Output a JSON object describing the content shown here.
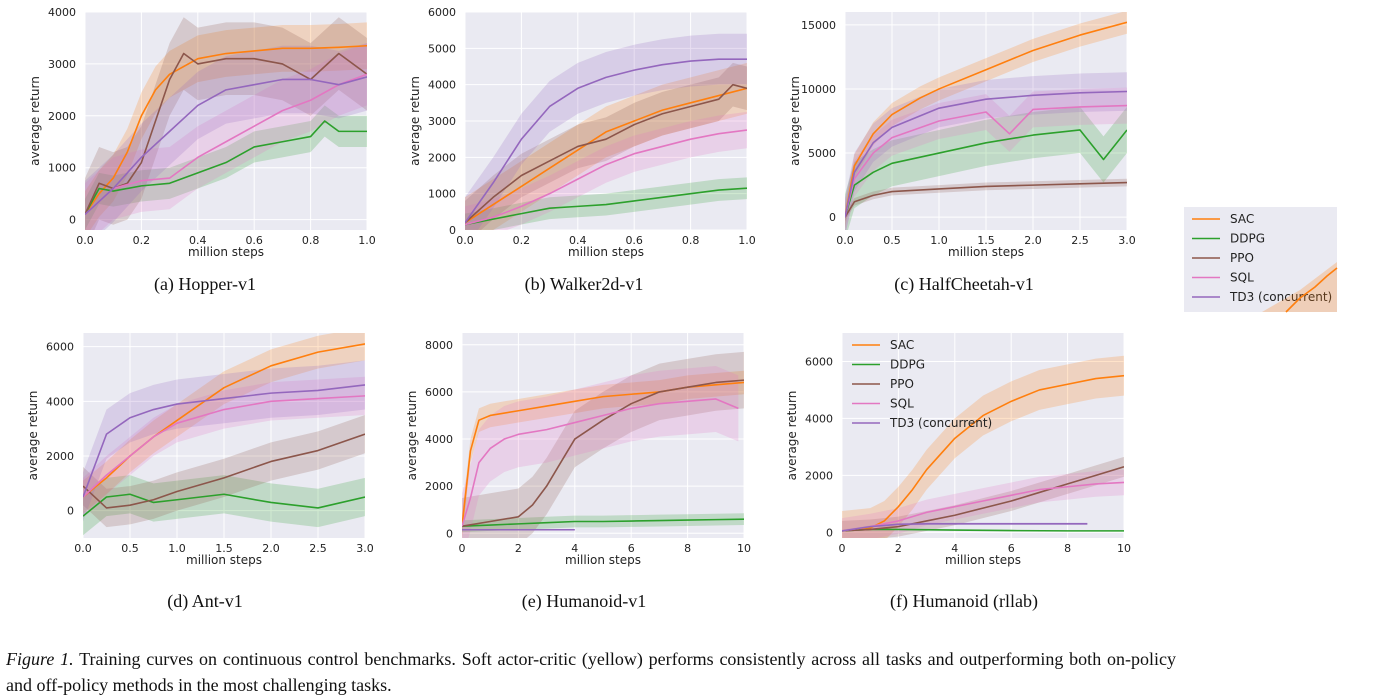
{
  "figure": {
    "caption_lead": "Figure 1.",
    "caption_text": "Training curves on continuous control benchmarks.  Soft actor-critic (yellow) performs consistently across all tasks and outperforming both on-policy and off-policy methods in the most challenging tasks."
  },
  "colors": {
    "SAC": "#ff7f0e",
    "DDPG": "#2ca02c",
    "PPO": "#8c564b",
    "SQL": "#e377c2",
    "TD3 (concurrent)": "#9467bd",
    "panel_bg": "#eaeaf2",
    "grid": "#ffffff"
  },
  "legend": {
    "entries": [
      "SAC",
      "DDPG",
      "PPO",
      "SQL",
      "TD3 (concurrent)"
    ]
  },
  "chart_data": [
    {
      "type": "line",
      "caption": "(a) Hopper-v1",
      "xlabel": "million steps",
      "ylabel": "average return",
      "xlim": [
        0,
        1.0
      ],
      "ylim": [
        -200,
        4000
      ],
      "xticks": [
        0.0,
        0.2,
        0.4,
        0.6,
        0.8,
        1.0
      ],
      "xtick_labels": [
        "0.0",
        "0.2",
        "0.4",
        "0.6",
        "0.8",
        "1.0"
      ],
      "yticks": [
        0,
        1000,
        2000,
        3000,
        4000
      ],
      "ytick_labels": [
        "0",
        "1000",
        "2000",
        "3000",
        "4000"
      ],
      "grid": true,
      "series": [
        {
          "name": "SAC",
          "x": [
            0,
            0.05,
            0.1,
            0.15,
            0.2,
            0.25,
            0.3,
            0.4,
            0.5,
            0.6,
            0.7,
            0.8,
            0.9,
            1.0
          ],
          "y": [
            100,
            500,
            800,
            1300,
            2000,
            2500,
            2800,
            3100,
            3200,
            3250,
            3300,
            3300,
            3320,
            3350
          ],
          "band": 450
        },
        {
          "name": "DDPG",
          "x": [
            0,
            0.05,
            0.1,
            0.2,
            0.3,
            0.4,
            0.5,
            0.6,
            0.7,
            0.8,
            0.85,
            0.9,
            1.0
          ],
          "y": [
            100,
            600,
            550,
            650,
            700,
            900,
            1100,
            1400,
            1500,
            1600,
            1900,
            1700,
            1700
          ],
          "band": 300
        },
        {
          "name": "PPO",
          "x": [
            0,
            0.05,
            0.1,
            0.15,
            0.2,
            0.25,
            0.3,
            0.35,
            0.4,
            0.5,
            0.6,
            0.7,
            0.8,
            0.9,
            1.0
          ],
          "y": [
            100,
            700,
            600,
            700,
            1100,
            1900,
            2700,
            3200,
            3000,
            3100,
            3100,
            3000,
            2700,
            3200,
            2800
          ],
          "band": 700
        },
        {
          "name": "SQL",
          "x": [
            0,
            0.1,
            0.2,
            0.3,
            0.4,
            0.5,
            0.6,
            0.7,
            0.8,
            0.9,
            1.0
          ],
          "y": [
            100,
            600,
            750,
            800,
            1200,
            1500,
            1800,
            2100,
            2300,
            2600,
            2800
          ],
          "band": 600
        },
        {
          "name": "TD3 (concurrent)",
          "x": [
            0,
            0.1,
            0.2,
            0.3,
            0.4,
            0.5,
            0.6,
            0.7,
            0.8,
            0.9,
            1.0
          ],
          "y": [
            100,
            600,
            1200,
            1700,
            2200,
            2500,
            2600,
            2700,
            2700,
            2600,
            2750
          ],
          "band": 650
        }
      ]
    },
    {
      "type": "line",
      "caption": "(b) Walker2d-v1",
      "xlabel": "million steps",
      "ylabel": "average return",
      "xlim": [
        0,
        1.0
      ],
      "ylim": [
        0,
        6000
      ],
      "xticks": [
        0.0,
        0.2,
        0.4,
        0.6,
        0.8,
        1.0
      ],
      "xtick_labels": [
        "0.0",
        "0.2",
        "0.4",
        "0.6",
        "0.8",
        "1.0"
      ],
      "yticks": [
        0,
        1000,
        2000,
        3000,
        4000,
        5000,
        6000
      ],
      "ytick_labels": [
        "0",
        "1000",
        "2000",
        "3000",
        "4000",
        "5000",
        "6000"
      ],
      "grid": true,
      "series": [
        {
          "name": "SAC",
          "x": [
            0,
            0.1,
            0.2,
            0.3,
            0.4,
            0.5,
            0.6,
            0.7,
            0.8,
            0.9,
            1.0
          ],
          "y": [
            200,
            700,
            1200,
            1700,
            2200,
            2700,
            3000,
            3300,
            3500,
            3700,
            3900
          ],
          "band": 700
        },
        {
          "name": "DDPG",
          "x": [
            0,
            0.1,
            0.2,
            0.3,
            0.4,
            0.5,
            0.6,
            0.7,
            0.8,
            0.9,
            1.0
          ],
          "y": [
            150,
            300,
            450,
            600,
            650,
            700,
            800,
            900,
            1000,
            1100,
            1150
          ],
          "band": 300
        },
        {
          "name": "PPO",
          "x": [
            0,
            0.1,
            0.2,
            0.3,
            0.4,
            0.5,
            0.6,
            0.7,
            0.8,
            0.9,
            0.95,
            1.0
          ],
          "y": [
            200,
            900,
            1500,
            1900,
            2300,
            2500,
            2900,
            3200,
            3400,
            3600,
            4000,
            3900
          ],
          "band": 600
        },
        {
          "name": "SQL",
          "x": [
            0,
            0.1,
            0.2,
            0.3,
            0.4,
            0.5,
            0.6,
            0.7,
            0.8,
            0.9,
            1.0
          ],
          "y": [
            150,
            350,
            650,
            1000,
            1400,
            1800,
            2100,
            2300,
            2500,
            2650,
            2750
          ],
          "band": 500
        },
        {
          "name": "TD3 (concurrent)",
          "x": [
            0,
            0.1,
            0.2,
            0.3,
            0.4,
            0.5,
            0.6,
            0.7,
            0.8,
            0.9,
            1.0
          ],
          "y": [
            200,
            1300,
            2500,
            3400,
            3900,
            4200,
            4400,
            4550,
            4650,
            4700,
            4700
          ],
          "band": 700
        }
      ]
    },
    {
      "type": "line",
      "caption": "(c) HalfCheetah-v1",
      "xlabel": "million steps",
      "ylabel": "average return",
      "xlim": [
        0,
        3.0
      ],
      "ylim": [
        -1000,
        16000
      ],
      "xticks": [
        0.0,
        0.5,
        1.0,
        1.5,
        2.0,
        2.5,
        3.0
      ],
      "xtick_labels": [
        "0.0",
        "0.5",
        "1.0",
        "1.5",
        "2.0",
        "2.5",
        "3.0"
      ],
      "yticks": [
        0,
        5000,
        10000,
        15000
      ],
      "ytick_labels": [
        "0",
        "5000",
        "10000",
        "15000"
      ],
      "grid": true,
      "series": [
        {
          "name": "SAC",
          "x": [
            0,
            0.1,
            0.3,
            0.5,
            0.8,
            1.0,
            1.5,
            2.0,
            2.5,
            3.0
          ],
          "y": [
            0,
            4000,
            6500,
            8000,
            9300,
            10000,
            11500,
            13000,
            14200,
            15200
          ],
          "band": 900
        },
        {
          "name": "DDPG",
          "x": [
            0,
            0.1,
            0.3,
            0.5,
            1.0,
            1.5,
            2.0,
            2.5,
            2.75,
            3.0
          ],
          "y": [
            0,
            2500,
            3500,
            4200,
            5000,
            5800,
            6400,
            6800,
            4500,
            6800
          ],
          "band": 1800
        },
        {
          "name": "PPO",
          "x": [
            0,
            0.1,
            0.3,
            0.5,
            1.0,
            1.5,
            2.0,
            2.5,
            3.0
          ],
          "y": [
            0,
            1200,
            1700,
            2000,
            2200,
            2400,
            2500,
            2600,
            2700
          ],
          "band": 300
        },
        {
          "name": "SQL",
          "x": [
            0,
            0.1,
            0.3,
            0.5,
            1.0,
            1.5,
            1.75,
            2.0,
            2.5,
            3.0
          ],
          "y": [
            0,
            3000,
            5000,
            6200,
            7500,
            8200,
            6500,
            8400,
            8600,
            8700
          ],
          "band": 1400
        },
        {
          "name": "TD3 (concurrent)",
          "x": [
            0,
            0.1,
            0.3,
            0.5,
            1.0,
            1.5,
            2.0,
            2.5,
            3.0
          ],
          "y": [
            0,
            3500,
            5800,
            7000,
            8500,
            9200,
            9500,
            9700,
            9800
          ],
          "band": 1500
        }
      ]
    },
    {
      "type": "line",
      "caption": "(d) Ant-v1",
      "xlabel": "million steps",
      "ylabel": "average return",
      "xlim": [
        0,
        3.0
      ],
      "ylim": [
        -1000,
        6500
      ],
      "xticks": [
        0.0,
        0.5,
        1.0,
        1.5,
        2.0,
        2.5,
        3.0
      ],
      "xtick_labels": [
        "0.0",
        "0.5",
        "1.0",
        "1.5",
        "2.0",
        "2.5",
        "3.0"
      ],
      "yticks": [
        0,
        2000,
        4000,
        6000
      ],
      "ytick_labels": [
        "0",
        "2000",
        "4000",
        "6000"
      ],
      "grid": true,
      "series": [
        {
          "name": "SAC",
          "x": [
            0,
            0.25,
            0.5,
            0.75,
            1.0,
            1.5,
            2.0,
            2.5,
            3.0
          ],
          "y": [
            500,
            1200,
            2000,
            2700,
            3300,
            4500,
            5300,
            5800,
            6100
          ],
          "band": 600
        },
        {
          "name": "DDPG",
          "x": [
            0,
            0.25,
            0.5,
            0.75,
            1.0,
            1.5,
            2.0,
            2.5,
            3.0
          ],
          "y": [
            -200,
            500,
            600,
            300,
            400,
            600,
            300,
            100,
            500
          ],
          "band": 700
        },
        {
          "name": "PPO",
          "x": [
            0,
            0.25,
            0.5,
            0.75,
            1.0,
            1.5,
            2.0,
            2.5,
            3.0
          ],
          "y": [
            900,
            100,
            200,
            400,
            700,
            1200,
            1800,
            2200,
            2800
          ],
          "band": 700
        },
        {
          "name": "SQL",
          "x": [
            0,
            0.25,
            0.5,
            0.75,
            1.0,
            1.5,
            2.0,
            2.5,
            3.0
          ],
          "y": [
            500,
            1300,
            2000,
            2700,
            3200,
            3700,
            4000,
            4100,
            4200
          ],
          "band": 700
        },
        {
          "name": "TD3 (concurrent)",
          "x": [
            0,
            0.25,
            0.5,
            0.75,
            1.0,
            1.5,
            2.0,
            2.5,
            3.0
          ],
          "y": [
            500,
            2800,
            3400,
            3700,
            3900,
            4100,
            4300,
            4400,
            4600
          ],
          "band": 900
        }
      ]
    },
    {
      "type": "line",
      "caption": "(e) Humanoid-v1",
      "xlabel": "million steps",
      "ylabel": "average return",
      "xlim": [
        0,
        10
      ],
      "ylim": [
        -200,
        8500
      ],
      "xticks": [
        0,
        2,
        4,
        6,
        8,
        10
      ],
      "xtick_labels": [
        "0",
        "2",
        "4",
        "6",
        "8",
        "10"
      ],
      "yticks": [
        0,
        2000,
        4000,
        6000,
        8000
      ],
      "ytick_labels": [
        "0",
        "2000",
        "4000",
        "6000",
        "8000"
      ],
      "grid": true,
      "series": [
        {
          "name": "SAC",
          "x": [
            0,
            0.3,
            0.6,
            1,
            2,
            3,
            4,
            5,
            6,
            7,
            8,
            9,
            10
          ],
          "y": [
            300,
            3500,
            4800,
            5000,
            5200,
            5400,
            5600,
            5800,
            5900,
            6000,
            6200,
            6300,
            6400
          ],
          "band": 500
        },
        {
          "name": "DDPG",
          "x": [
            0,
            1,
            2,
            3,
            4,
            5,
            6,
            7,
            8,
            9,
            10
          ],
          "y": [
            300,
            350,
            400,
            450,
            500,
            500,
            520,
            540,
            560,
            580,
            600
          ],
          "band": 250
        },
        {
          "name": "PPO",
          "x": [
            0,
            1,
            2,
            2.5,
            3,
            3.5,
            4,
            5,
            6,
            7,
            8,
            9,
            10
          ],
          "y": [
            300,
            500,
            700,
            1200,
            2000,
            3000,
            4000,
            4800,
            5500,
            6000,
            6200,
            6400,
            6500
          ],
          "band": 1200
        },
        {
          "name": "SQL",
          "x": [
            0,
            0.3,
            0.6,
            1,
            1.5,
            2,
            3,
            4,
            5,
            6,
            7,
            8,
            9,
            9.8
          ],
          "y": [
            300,
            1500,
            3000,
            3600,
            4000,
            4200,
            4400,
            4700,
            5000,
            5300,
            5500,
            5600,
            5700,
            5300
          ],
          "band": 1400
        },
        {
          "name": "TD3 (concurrent)",
          "x": [
            0,
            1,
            2,
            3,
            4
          ],
          "y": [
            150,
            150,
            150,
            150,
            150
          ],
          "band": 30
        }
      ]
    },
    {
      "type": "line",
      "caption": "(f) Humanoid (rllab)",
      "xlabel": "million steps",
      "ylabel": "average return",
      "xlim": [
        0,
        10
      ],
      "ylim": [
        -200,
        7000
      ],
      "xticks": [
        0,
        2,
        4,
        6,
        8,
        10
      ],
      "xtick_labels": [
        "0",
        "2",
        "4",
        "6",
        "8",
        "10"
      ],
      "yticks": [
        0,
        2000,
        4000,
        6000
      ],
      "ytick_labels": [
        "0",
        "2000",
        "4000",
        "6000"
      ],
      "grid": true,
      "legend_position": "upper left",
      "series": [
        {
          "name": "SAC",
          "x": [
            0,
            1,
            1.5,
            2,
            2.5,
            3,
            4,
            5,
            6,
            7,
            8,
            9,
            10
          ],
          "y": [
            50,
            150,
            400,
            900,
            1500,
            2200,
            3300,
            4100,
            4600,
            5000,
            5200,
            5400,
            5500
          ],
          "band": 700
        },
        {
          "name": "DDPG",
          "x": [
            0,
            1,
            2,
            4,
            6,
            8,
            10
          ],
          "y": [
            50,
            100,
            100,
            80,
            60,
            50,
            50
          ],
          "band": 20
        },
        {
          "name": "PPO",
          "x": [
            0,
            1,
            2,
            3,
            4,
            5,
            6,
            7,
            8,
            9,
            10
          ],
          "y": [
            50,
            100,
            200,
            400,
            600,
            850,
            1100,
            1400,
            1700,
            2000,
            2300
          ],
          "band": 350
        },
        {
          "name": "SQL",
          "x": [
            0,
            1,
            2,
            3,
            4,
            5,
            6,
            7,
            8,
            9,
            10
          ],
          "y": [
            50,
            200,
            400,
            700,
            900,
            1100,
            1300,
            1500,
            1600,
            1700,
            1750
          ],
          "band": 450
        },
        {
          "name": "TD3 (concurrent)",
          "x": [
            0,
            1,
            2,
            3,
            4,
            5,
            6,
            7,
            8,
            8.7
          ],
          "y": [
            50,
            200,
            280,
            300,
            300,
            300,
            300,
            300,
            300,
            300
          ],
          "band": 40
        }
      ]
    }
  ]
}
